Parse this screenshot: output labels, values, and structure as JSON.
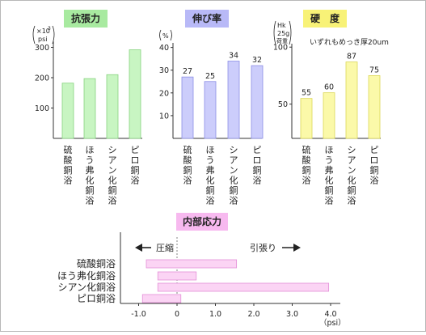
{
  "chart_data": [
    {
      "type": "bar",
      "title": "抗張力",
      "unit": "×10³ psi",
      "ytick_labels": [
        "100",
        "200",
        "300"
      ],
      "ylim": [
        0,
        320
      ],
      "categories": [
        "硫酸銅浴",
        "ほう弗化銅浴",
        "シアン化銅浴",
        "ピロ銅浴"
      ],
      "values": [
        182,
        197,
        210,
        292
      ],
      "color": "#c8f5c2",
      "stroke": "#88d37f",
      "title_bg": "#a8eaa0"
    },
    {
      "type": "bar",
      "title": "伸び率",
      "unit": "%",
      "ytick_labels": [
        "10",
        "20",
        "30",
        "40"
      ],
      "ylim": [
        0,
        42
      ],
      "categories": [
        "硫酸銅浴",
        "ほう弗化銅浴",
        "シアン化銅浴",
        "ピロ銅浴"
      ],
      "values": [
        27,
        25,
        34,
        32
      ],
      "data_labels": [
        "27",
        "25",
        "34",
        "32"
      ],
      "color": "#cccdfb",
      "stroke": "#8d90e6",
      "title_bg": "#b8b9f7"
    },
    {
      "type": "bar",
      "title": "硬　度",
      "unit": "Hk 25g 荷重",
      "annotation": "いずれもめっき厚20um",
      "ytick_labels": [
        "50",
        "100"
      ],
      "ylim": [
        20,
        103
      ],
      "categories": [
        "硫酸銅浴",
        "ほう弗化銅浴",
        "シアン化銅浴",
        "ピロ銅浴"
      ],
      "values": [
        55,
        60,
        87,
        75
      ],
      "data_labels": [
        "55",
        "60",
        "87",
        "75"
      ],
      "color": "#fbf9a9",
      "stroke": "#dcd756",
      "title_bg": "#f8f277"
    },
    {
      "type": "bar",
      "orientation": "horizontal",
      "title": "内部応力",
      "unit": "（psi）",
      "xtick_labels": [
        "-1.0",
        "0",
        "1.0",
        "2.0",
        "3.0",
        "4.0"
      ],
      "xlim": [
        -1.2,
        4.3
      ],
      "categories": [
        "硫酸銅浴",
        "ほう弗化銅浴",
        "シアン化銅浴",
        "ピロ銅浴"
      ],
      "ranges": [
        [
          -0.8,
          1.55
        ],
        [
          -0.5,
          0.5
        ],
        [
          -0.5,
          3.95
        ],
        [
          -0.9,
          0.1
        ]
      ],
      "left_annotation": "圧縮",
      "right_annotation": "引張り",
      "color": "#fbd4f4",
      "stroke": "#e38fd8",
      "title_bg": "#f7b9ef"
    }
  ]
}
